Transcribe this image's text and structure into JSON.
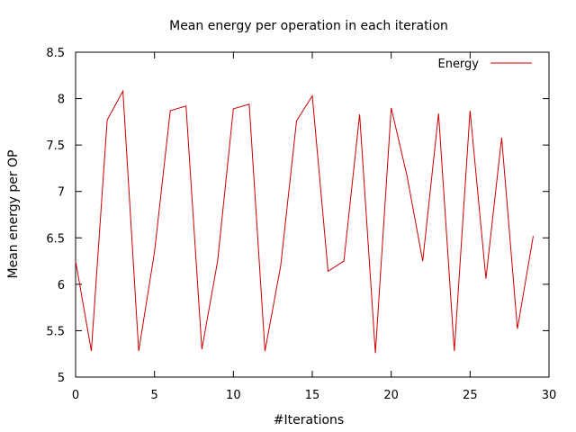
{
  "chart_data": {
    "type": "line",
    "title": "Mean energy per operation in each iteration",
    "xlabel": "#Iterations",
    "ylabel": "Mean energy per OP",
    "xlim": [
      0,
      30
    ],
    "ylim": [
      5,
      8.5
    ],
    "xticks": [
      0,
      5,
      10,
      15,
      20,
      25,
      30
    ],
    "yticks": [
      5,
      5.5,
      6,
      6.5,
      7,
      7.5,
      8,
      8.5
    ],
    "grid": false,
    "legend_position": "top-right",
    "series": [
      {
        "name": "Energy",
        "color": "#cc0000",
        "x": [
          0,
          1,
          2,
          3,
          4,
          5,
          6,
          7,
          8,
          9,
          10,
          11,
          12,
          13,
          14,
          15,
          16,
          17,
          18,
          19,
          20,
          21,
          22,
          23,
          24,
          25,
          26,
          27,
          28,
          29
        ],
        "y": [
          6.25,
          5.28,
          7.77,
          8.08,
          5.28,
          6.35,
          7.87,
          7.92,
          5.3,
          6.25,
          7.89,
          7.94,
          5.28,
          6.2,
          7.76,
          8.03,
          6.14,
          6.25,
          7.83,
          5.26,
          7.9,
          7.17,
          6.25,
          7.84,
          5.28,
          7.87,
          6.06,
          7.58,
          5.52,
          6.52
        ]
      }
    ]
  }
}
